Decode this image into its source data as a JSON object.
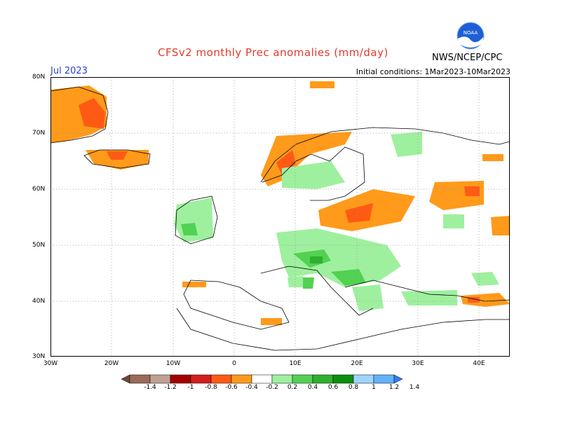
{
  "header": {
    "title": "CFSv2 monthly Prec anomalies (mm/day)",
    "month": "Jul 2023",
    "initial_conditions": "Initial conditions: 1Mar2023-10Mar2023",
    "agency": "NWS/NCEP/CPC",
    "logo_text": "NOAA"
  },
  "axes": {
    "lat_labels": [
      "80N",
      "70N",
      "60N",
      "50N",
      "40N",
      "30N"
    ],
    "lon_labels": [
      "30W",
      "20W",
      "10W",
      "0",
      "10E",
      "20E",
      "30E",
      "40E"
    ],
    "lat_range": [
      30,
      80
    ],
    "lon_range": [
      -30,
      45
    ],
    "grid": true
  },
  "colorbar": {
    "labels": [
      "-1.4",
      "-1.2",
      "-1",
      "-0.8",
      "-0.6",
      "-0.4",
      "-0.2",
      "0.2",
      "0.4",
      "0.6",
      "0.8",
      "1",
      "1.2",
      "1.4"
    ],
    "colors": [
      "#6b4a3c",
      "#9a6b5a",
      "#c0a090",
      "#a40000",
      "#d41e1e",
      "#ff5a14",
      "#ff9a1a",
      "#ffffff",
      "#9ef09e",
      "#52d152",
      "#2fb02f",
      "#0c8f0c",
      "#9fd4ff",
      "#63b2ff",
      "#2f7ef5"
    ]
  },
  "anomalies": {
    "negative": [
      {
        "region": "Greenland east coast",
        "level": "-0.2"
      },
      {
        "region": "Iceland",
        "level": "-0.4"
      },
      {
        "region": "Norway west coast",
        "level": "-0.4"
      },
      {
        "region": "Baltic / Poland",
        "level": "-0.4"
      },
      {
        "region": "Western Russia",
        "level": "-0.2"
      },
      {
        "region": "Iberia north",
        "level": "-0.2"
      },
      {
        "region": "Caucasus",
        "level": "-0.4"
      }
    ],
    "positive": [
      {
        "region": "British Isles",
        "level": "0.2"
      },
      {
        "region": "Scandinavia interior",
        "level": "0.2"
      },
      {
        "region": "Alps / Balkans",
        "level": "0.6"
      },
      {
        "region": "Carpathians",
        "level": "0.4"
      },
      {
        "region": "Turkey north",
        "level": "0.2"
      }
    ]
  }
}
